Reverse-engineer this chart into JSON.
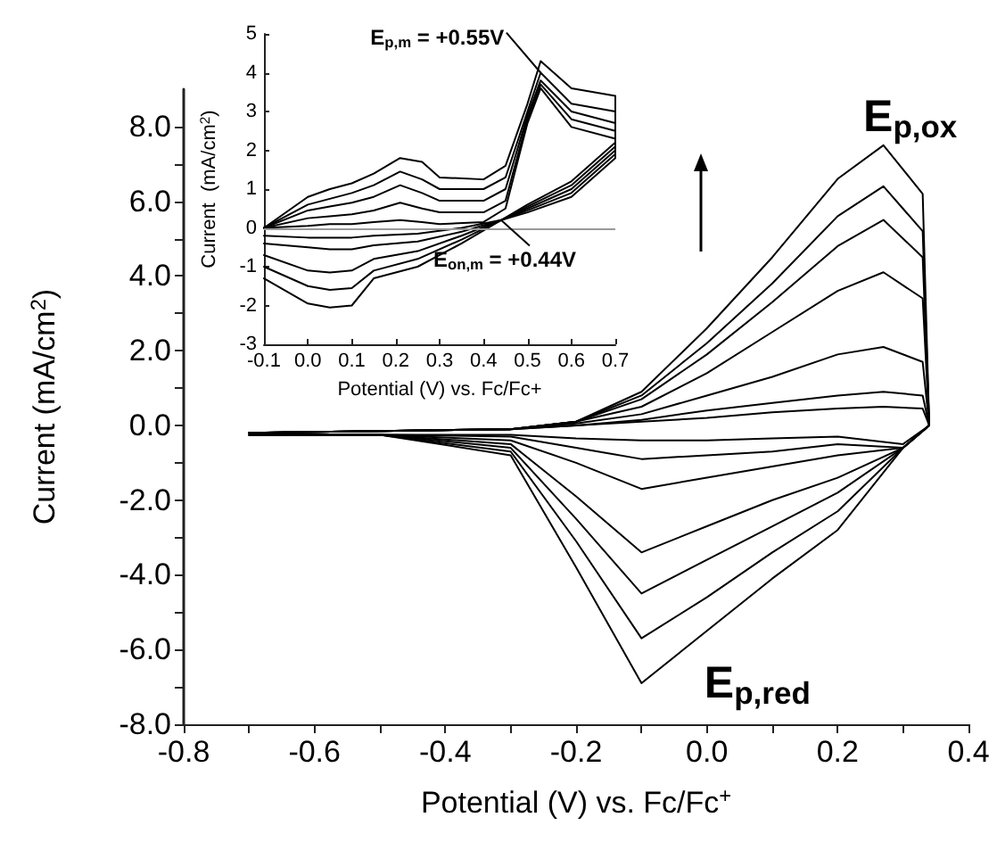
{
  "chart_data": [
    {
      "type": "line",
      "xlabel": "Potential (V) vs. Fc/Fc$^{+}$",
      "ylabel": "Current (mA/cm$^{2}$)",
      "x": [
        -0.7,
        -0.5,
        -0.3,
        -0.2,
        -0.1,
        0,
        0.1,
        0.2,
        0.27,
        0.33,
        0.34,
        0.3,
        0.2,
        0.1,
        0,
        -0.1,
        -0.2,
        -0.3,
        -0.5,
        -0.7
      ],
      "series": [
        {
          "color": "#000000",
          "values": [
            -0.2,
            -0.15,
            -0.1,
            0.1,
            0.9,
            2.6,
            4.5,
            6.6,
            7.5,
            6.2,
            0.0,
            -0.6,
            -2.8,
            -4.1,
            -5.5,
            -6.9,
            -3.8,
            -0.8,
            -0.25,
            -0.25
          ]
        },
        {
          "color": "#000000",
          "values": [
            -0.2,
            -0.15,
            -0.1,
            0.1,
            0.8,
            2.2,
            3.8,
            5.6,
            6.4,
            5.2,
            0.0,
            -0.6,
            -2.3,
            -3.4,
            -4.6,
            -5.7,
            -3.1,
            -0.7,
            -0.25,
            -0.25
          ]
        },
        {
          "color": "#000000",
          "values": [
            -0.2,
            -0.15,
            -0.1,
            0.1,
            0.7,
            1.9,
            3.3,
            4.8,
            5.5,
            4.5,
            0.0,
            -0.6,
            -1.8,
            -2.7,
            -3.6,
            -4.5,
            -2.5,
            -0.6,
            -0.25,
            -0.25
          ]
        },
        {
          "color": "#000000",
          "values": [
            -0.2,
            -0.15,
            -0.1,
            0.1,
            0.5,
            1.4,
            2.5,
            3.6,
            4.1,
            3.4,
            0.0,
            -0.6,
            -1.4,
            -2.0,
            -2.7,
            -3.4,
            -1.9,
            -0.5,
            -0.25,
            -0.25
          ]
        },
        {
          "color": "#000000",
          "values": [
            -0.2,
            -0.15,
            -0.1,
            0.05,
            0.3,
            0.8,
            1.3,
            1.9,
            2.1,
            1.7,
            0.0,
            -0.6,
            -0.8,
            -1.1,
            -1.4,
            -1.7,
            -1.0,
            -0.4,
            -0.25,
            -0.25
          ]
        },
        {
          "color": "#000000",
          "values": [
            -0.2,
            -0.15,
            -0.1,
            0.0,
            0.15,
            0.4,
            0.6,
            0.8,
            0.9,
            0.8,
            0.0,
            -0.6,
            -0.5,
            -0.7,
            -0.8,
            -0.9,
            -0.6,
            -0.3,
            -0.25,
            -0.25
          ]
        },
        {
          "color": "#000000",
          "values": [
            -0.2,
            -0.15,
            -0.1,
            0.0,
            0.1,
            0.2,
            0.35,
            0.45,
            0.5,
            0.45,
            0.0,
            -0.5,
            -0.3,
            -0.35,
            -0.4,
            -0.4,
            -0.35,
            -0.25,
            -0.25,
            -0.25
          ]
        }
      ],
      "xlim": [
        -0.8,
        0.4
      ],
      "xticks": [
        -0.8,
        {
          "value": -0.7,
          "label": null
        },
        -0.6,
        {
          "value": -0.5,
          "label": null
        },
        -0.4,
        {
          "value": -0.3,
          "label": null
        },
        -0.2,
        {
          "value": -0.1,
          "label": null
        },
        {
          "value": 0,
          "label": "0.0"
        },
        {
          "value": 0.1,
          "label": null
        },
        0.2,
        {
          "value": 0.3,
          "label": null
        },
        0.4
      ],
      "ylim": [
        -8,
        9
      ],
      "yticks": [
        {
          "value": -8,
          "label": "-8.0"
        },
        {
          "value": -7,
          "label": null
        },
        {
          "value": -6,
          "label": "-6.0"
        },
        {
          "value": -5,
          "label": null
        },
        {
          "value": -4,
          "label": "-4.0"
        },
        {
          "value": -3,
          "label": null
        },
        {
          "value": -2,
          "label": "-2.0"
        },
        {
          "value": -1,
          "label": null
        },
        {
          "value": 0,
          "label": "0.0"
        },
        {
          "value": 1,
          "label": null
        },
        {
          "value": 2,
          "label": "2.0"
        },
        {
          "value": 3,
          "label": null
        },
        {
          "value": 4,
          "label": "4.0"
        },
        {
          "value": 5,
          "label": null
        },
        {
          "value": 6,
          "label": "6.0"
        },
        {
          "value": 7,
          "label": null
        },
        {
          "value": 8,
          "label": "8.0"
        }
      ],
      "marker": "none",
      "line_style": "solid",
      "annotations": [
        {
          "text": "E$_{p,ox}$",
          "x": 0.27,
          "y": 7.5
        },
        {
          "text": "E$_{p,red}$",
          "x": -0.1,
          "y": -6.9
        }
      ]
    },
    {
      "type": "line",
      "xlabel": "Potential (V) vs. Fc/Fc+",
      "ylabel": "Current  (mA/cm$^{2}$)",
      "x": [
        -0.1,
        0,
        0.05,
        0.1,
        0.15,
        0.21,
        0.26,
        0.3,
        0.4,
        0.45,
        0.5,
        0.53,
        0.6,
        0.7,
        0.7,
        0.6,
        0.5,
        0.44,
        0.35,
        0.25,
        0.15,
        0.1,
        0.05,
        0,
        -0.1
      ],
      "series": [
        {
          "color": "#000000",
          "values": [
            0,
            0.8,
            1.0,
            1.15,
            1.4,
            1.8,
            1.7,
            1.3,
            1.25,
            1.6,
            3.2,
            4.3,
            3.6,
            3.4,
            2.2,
            1.2,
            0.6,
            0.2,
            -0.4,
            -1.0,
            -1.3,
            -2.0,
            -2.05,
            -1.95,
            -1.3
          ]
        },
        {
          "color": "#000000",
          "values": [
            0,
            0.6,
            0.75,
            0.9,
            1.1,
            1.45,
            1.25,
            1.0,
            1.0,
            1.3,
            3.0,
            4.0,
            3.2,
            3.0,
            2.1,
            1.1,
            0.55,
            0.2,
            -0.3,
            -0.8,
            -1.1,
            -1.55,
            -1.6,
            -1.5,
            -1.0
          ]
        },
        {
          "color": "#000000",
          "values": [
            0,
            0.45,
            0.55,
            0.65,
            0.8,
            1.1,
            0.9,
            0.7,
            0.7,
            1.0,
            2.9,
            3.8,
            3.0,
            2.7,
            2.0,
            1.0,
            0.5,
            0.2,
            -0.2,
            -0.6,
            -0.8,
            -1.1,
            -1.15,
            -1.1,
            -0.7
          ]
        },
        {
          "color": "#000000",
          "values": [
            0,
            0.25,
            0.3,
            0.35,
            0.45,
            0.65,
            0.5,
            0.4,
            0.4,
            0.7,
            2.8,
            3.7,
            2.8,
            2.5,
            1.9,
            0.9,
            0.45,
            0.2,
            -0.1,
            -0.35,
            -0.45,
            -0.55,
            -0.55,
            -0.5,
            -0.4
          ]
        },
        {
          "color": "#000000",
          "values": [
            0,
            0.05,
            0.1,
            0.1,
            0.15,
            0.2,
            0.15,
            0.1,
            0.15,
            0.5,
            2.7,
            3.6,
            2.6,
            2.3,
            1.8,
            0.8,
            0.4,
            0.2,
            0.0,
            -0.15,
            -0.2,
            -0.25,
            -0.25,
            -0.25,
            -0.2
          ]
        }
      ],
      "xlim": [
        -0.1,
        0.7
      ],
      "xticks": [
        -0.1,
        {
          "value": 0,
          "label": "0.0"
        },
        0.1,
        0.2,
        0.3,
        0.4,
        0.5,
        0.6,
        0.7
      ],
      "ylim": [
        -3,
        5
      ],
      "yticks": [
        -3,
        -2,
        -1,
        0,
        1,
        2,
        3,
        4,
        5
      ],
      "ref_lines": [
        {
          "axis": "y",
          "value": 0,
          "color": "#999999"
        }
      ],
      "marker": "none",
      "line_style": "solid",
      "annotations": [
        {
          "text": "E$_{p,m}$ = +0.55V",
          "x": 0.53,
          "y": 4.0
        },
        {
          "text": "E$_{on,m}$ = +0.44V",
          "x": 0.44,
          "y": 0.2
        }
      ]
    }
  ]
}
